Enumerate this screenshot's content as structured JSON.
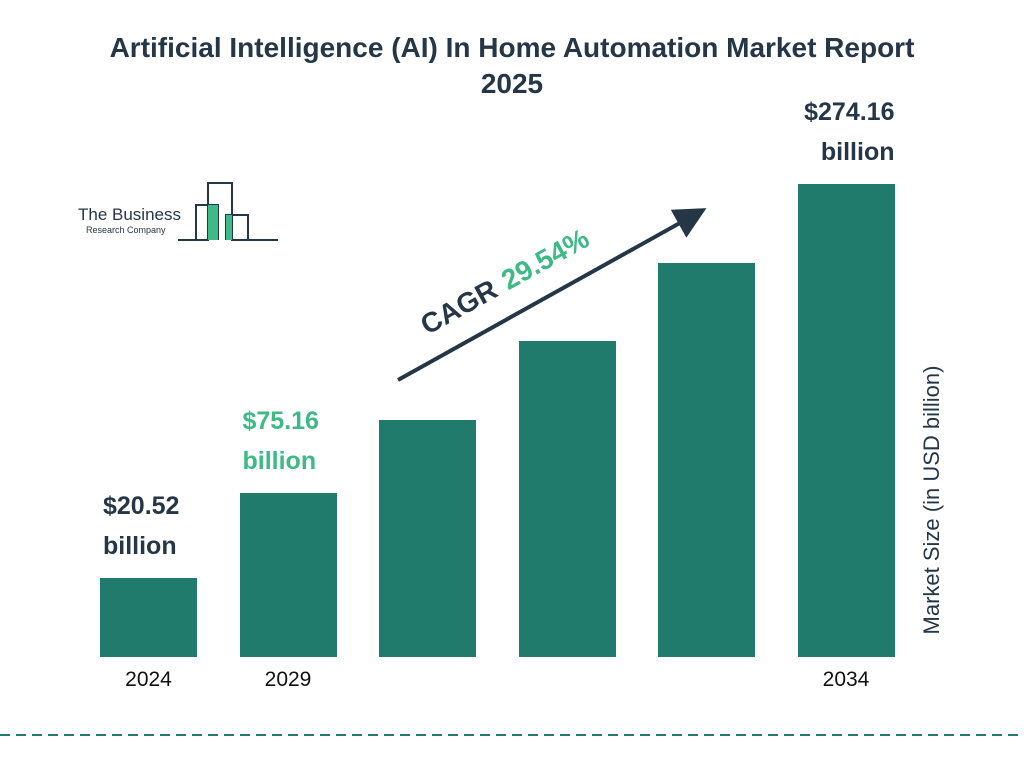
{
  "chart_data": {
    "type": "bar",
    "title": "Artificial Intelligence (AI) In Home Automation Market Report 2025",
    "categories": [
      "2024",
      "2029",
      null,
      null,
      null,
      "2034"
    ],
    "values": [
      20.52,
      75.16,
      122,
      173,
      223,
      274.16
    ],
    "value_labels": [
      "$20.52 billion",
      "$75.16 billion",
      null,
      null,
      null,
      "$274.16 billion"
    ],
    "color": "#217b6c",
    "y_label": "Market Size (in USD billion)",
    "annotation": {
      "label": "CAGR",
      "value": "29.54%"
    },
    "logo": {
      "line1": "The Business",
      "line2": "Research Company"
    }
  }
}
